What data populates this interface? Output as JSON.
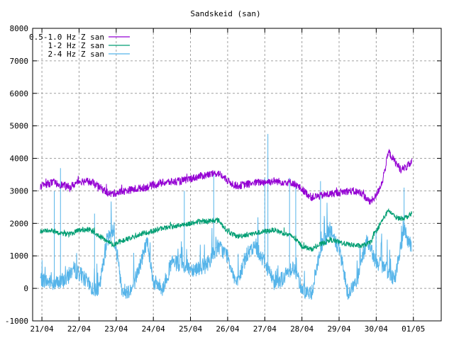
{
  "chart_data": {
    "type": "line",
    "title": "Sandskeid (san)",
    "xlabel": "",
    "ylabel": "",
    "x_ticks": [
      "21/04",
      "22/04",
      "23/04",
      "24/04",
      "25/04",
      "26/04",
      "27/04",
      "28/04",
      "29/04",
      "30/04",
      "01/05"
    ],
    "xlim": [
      "2021-04-20 18:00",
      "2021-05-01 18:00"
    ],
    "ylim": [
      -1000,
      8000
    ],
    "y_ticks": [
      -1000,
      0,
      1000,
      2000,
      3000,
      4000,
      5000,
      6000,
      7000,
      8000
    ],
    "grid": true,
    "legend_position": "top-left",
    "series": [
      {
        "name": "0.5-1.0 Hz Z san",
        "color": "#9400d3",
        "noise": 120,
        "points": [
          [
            "20/04 23:00",
            3150
          ],
          [
            "21/04 06:00",
            3250
          ],
          [
            "21/04 12:00",
            3200
          ],
          [
            "21/04 18:00",
            3100
          ],
          [
            "22/04 00:00",
            3300
          ],
          [
            "22/04 06:00",
            3300
          ],
          [
            "22/04 12:00",
            3150
          ],
          [
            "22/04 20:00",
            2900
          ],
          [
            "23/04 06:00",
            3000
          ],
          [
            "23/04 18:00",
            3100
          ],
          [
            "24/04 06:00",
            3250
          ],
          [
            "24/04 18:00",
            3300
          ],
          [
            "25/04 06:00",
            3450
          ],
          [
            "25/04 18:00",
            3550
          ],
          [
            "26/04 00:00",
            3300
          ],
          [
            "26/04 06:00",
            3150
          ],
          [
            "26/04 18:00",
            3250
          ],
          [
            "27/04 06:00",
            3300
          ],
          [
            "27/04 18:00",
            3250
          ],
          [
            "28/04 00:00",
            3050
          ],
          [
            "28/04 06:00",
            2800
          ],
          [
            "28/04 18:00",
            2900
          ],
          [
            "29/04 06:00",
            3000
          ],
          [
            "29/04 14:00",
            2950
          ],
          [
            "29/04 20:00",
            2650
          ],
          [
            "30/04 00:00",
            2850
          ],
          [
            "30/04 04:00",
            3300
          ],
          [
            "30/04 08:00",
            4200
          ],
          [
            "30/04 12:00",
            3900
          ],
          [
            "30/04 16:00",
            3650
          ],
          [
            "30/04 20:00",
            3750
          ],
          [
            "30/04 23:00",
            3900
          ]
        ]
      },
      {
        "name": "1-2 Hz Z san",
        "color": "#009e73",
        "noise": 80,
        "points": [
          [
            "20/04 23:00",
            1750
          ],
          [
            "21/04 06:00",
            1800
          ],
          [
            "21/04 12:00",
            1700
          ],
          [
            "21/04 18:00",
            1650
          ],
          [
            "22/04 00:00",
            1800
          ],
          [
            "22/04 06:00",
            1800
          ],
          [
            "22/04 12:00",
            1650
          ],
          [
            "22/04 22:00",
            1350
          ],
          [
            "23/04 06:00",
            1500
          ],
          [
            "23/04 18:00",
            1700
          ],
          [
            "24/04 06:00",
            1850
          ],
          [
            "24/04 18:00",
            1950
          ],
          [
            "25/04 06:00",
            2050
          ],
          [
            "25/04 18:00",
            2100
          ],
          [
            "26/04 00:00",
            1750
          ],
          [
            "26/04 06:00",
            1600
          ],
          [
            "26/04 18:00",
            1700
          ],
          [
            "27/04 06:00",
            1800
          ],
          [
            "27/04 18:00",
            1600
          ],
          [
            "28/04 00:00",
            1300
          ],
          [
            "28/04 06:00",
            1200
          ],
          [
            "28/04 18:00",
            1500
          ],
          [
            "29/04 06:00",
            1350
          ],
          [
            "29/04 14:00",
            1300
          ],
          [
            "29/04 20:00",
            1400
          ],
          [
            "30/04 00:00",
            1750
          ],
          [
            "30/04 04:00",
            2100
          ],
          [
            "30/04 08:00",
            2400
          ],
          [
            "30/04 12:00",
            2200
          ],
          [
            "30/04 16:00",
            2150
          ],
          [
            "30/04 20:00",
            2200
          ],
          [
            "30/04 23:00",
            2300
          ]
        ]
      },
      {
        "name": "2-4 Hz Z san",
        "color": "#56b4e9",
        "noise": 250,
        "points": [
          [
            "20/04 23:00",
            300
          ],
          [
            "21/04 04:00",
            200
          ],
          [
            "21/04 10:00",
            150
          ],
          [
            "21/04 16:00",
            300
          ],
          [
            "21/04 20:00",
            600
          ],
          [
            "22/04 02:00",
            400
          ],
          [
            "22/04 08:00",
            0
          ],
          [
            "22/04 13:00",
            -50
          ],
          [
            "22/04 18:00",
            1500
          ],
          [
            "22/04 22:00",
            1800
          ],
          [
            "23/04 04:00",
            -100
          ],
          [
            "23/04 10:00",
            -50
          ],
          [
            "23/04 16:00",
            800
          ],
          [
            "23/04 20:00",
            1500
          ],
          [
            "24/04 00:00",
            200
          ],
          [
            "24/04 06:00",
            0
          ],
          [
            "24/04 12:00",
            800
          ],
          [
            "24/04 18:00",
            700
          ],
          [
            "25/04 02:00",
            600
          ],
          [
            "25/04 10:00",
            700
          ],
          [
            "25/04 18:00",
            1300
          ],
          [
            "26/04 00:00",
            1000
          ],
          [
            "26/04 06:00",
            100
          ],
          [
            "26/04 12:00",
            1000
          ],
          [
            "26/04 18:00",
            1300
          ],
          [
            "27/04 00:00",
            800
          ],
          [
            "27/04 06:00",
            200
          ],
          [
            "27/04 12:00",
            300
          ],
          [
            "27/04 18:00",
            700
          ],
          [
            "28/04 00:00",
            0
          ],
          [
            "28/04 06:00",
            -200
          ],
          [
            "28/04 12:00",
            1200
          ],
          [
            "28/04 18:00",
            1800
          ],
          [
            "29/04 00:00",
            1200
          ],
          [
            "29/04 06:00",
            -200
          ],
          [
            "29/04 12:00",
            300
          ],
          [
            "29/04 18:00",
            1500
          ],
          [
            "30/04 00:00",
            800
          ],
          [
            "30/04 06:00",
            600
          ],
          [
            "30/04 12:00",
            300
          ],
          [
            "30/04 18:00",
            1800
          ],
          [
            "30/04 23:00",
            1200
          ]
        ],
        "spikes": [
          [
            "21/04 08:00",
            3000
          ],
          [
            "21/04 12:00",
            3700
          ],
          [
            "22/04 10:00",
            2300
          ],
          [
            "24/04 20:00",
            3000
          ],
          [
            "25/04 15:00",
            3500
          ],
          [
            "27/04 00:00",
            3400
          ],
          [
            "27/04 02:00",
            4750
          ],
          [
            "27/04 16:00",
            3400
          ],
          [
            "27/04 20:00",
            3200
          ],
          [
            "28/04 12:00",
            3300
          ],
          [
            "30/04 18:00",
            3100
          ]
        ]
      }
    ]
  }
}
